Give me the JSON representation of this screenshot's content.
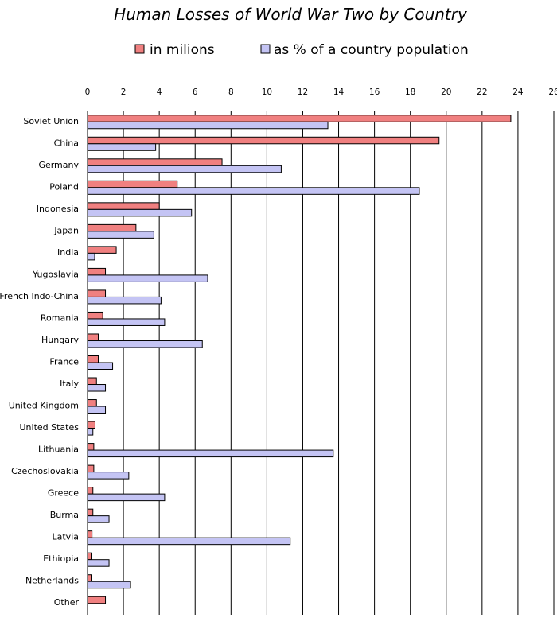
{
  "chart_data": {
    "type": "bar",
    "orientation": "horizontal",
    "title": "Human Losses of World War Two by Country",
    "xlim": [
      0,
      26
    ],
    "x_ticks": [
      "0",
      "2",
      "4",
      "6",
      "8",
      "10",
      "12",
      "14",
      "16",
      "18",
      "20",
      "22",
      "24",
      "26"
    ],
    "grid": "vertical",
    "legend_position": "top",
    "categories": [
      "Soviet Union",
      "China",
      "Germany",
      "Poland",
      "Indonesia",
      "Japan",
      "India",
      "Yugoslavia",
      "French Indo-China",
      "Romania",
      "Hungary",
      "France",
      "Italy",
      "United Kingdom",
      "United States",
      "Lithuania",
      "Czechoslovakia",
      "Greece",
      "Burma",
      "Latvia",
      "Ethiopia",
      "Netherlands",
      "Other"
    ],
    "series": [
      {
        "name": "in milions",
        "color": "#f08080",
        "values": [
          23.6,
          19.6,
          7.5,
          5.0,
          4.0,
          2.7,
          1.6,
          1.0,
          1.0,
          0.85,
          0.6,
          0.6,
          0.5,
          0.5,
          0.42,
          0.35,
          0.35,
          0.3,
          0.3,
          0.25,
          0.2,
          0.2,
          1.0
        ]
      },
      {
        "name": "as % of a country population",
        "color": "#c4c4f4",
        "values": [
          13.4,
          3.8,
          10.8,
          18.5,
          5.8,
          3.7,
          0.4,
          6.7,
          4.1,
          4.3,
          6.4,
          1.4,
          1.0,
          1.0,
          0.3,
          13.7,
          2.3,
          4.3,
          1.2,
          11.3,
          1.2,
          2.4,
          null
        ]
      }
    ]
  }
}
